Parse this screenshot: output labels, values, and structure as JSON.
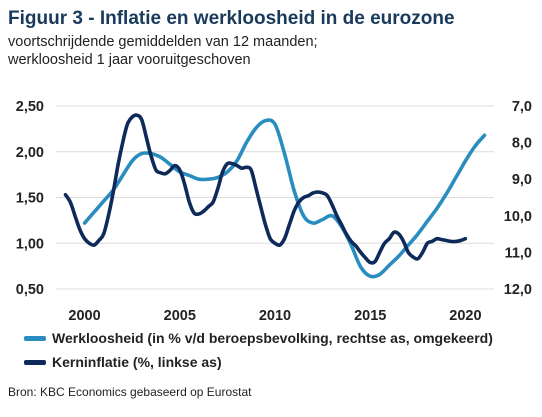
{
  "title": "Figuur 3 - Inflatie en werkloosheid in de eurozone",
  "subtitle_line1": "voortschrijdende gemiddelden van 12 maanden;",
  "subtitle_line2": "werkloosheid 1 jaar vooruitgeschoven",
  "source": "Bron: KBC Economics gebaseerd op Eurostat",
  "colors": {
    "unemployment": "#2a8dbf",
    "core_inflation": "#0d2a5a",
    "grid": "#dcdcdc"
  },
  "chart_data": {
    "type": "line",
    "x_range": [
      1998.5,
      2021.5
    ],
    "x_ticks": [
      "2000",
      "2005",
      "2010",
      "2015",
      "2020"
    ],
    "left_axis": {
      "range": [
        0.5,
        2.5
      ],
      "ticks": [
        "2,50",
        "2,00",
        "1,50",
        "1,00",
        "0,50"
      ]
    },
    "right_axis": {
      "range": [
        7.0,
        12.0
      ],
      "inverted": true,
      "ticks": [
        "7,0",
        "8,0",
        "9,0",
        "10,0",
        "11,0",
        "12,0"
      ]
    },
    "grid": true,
    "legend_position": "bottom",
    "series": [
      {
        "name": "Werkloosheid (in % v/d beroepsbevolking, rechtse as, omgekeerd)",
        "axis": "right",
        "x": [
          2000.0,
          2000.5,
          2001.0,
          2001.5,
          2002.0,
          2002.5,
          2003.0,
          2003.5,
          2004.0,
          2004.5,
          2005.0,
          2005.5,
          2006.0,
          2006.5,
          2007.0,
          2007.5,
          2008.0,
          2008.5,
          2009.0,
          2009.5,
          2010.0,
          2010.5,
          2011.0,
          2011.5,
          2012.0,
          2012.5,
          2013.0,
          2013.5,
          2014.0,
          2014.5,
          2015.0,
          2015.5,
          2016.0,
          2016.5,
          2017.0,
          2017.5,
          2018.0,
          2018.5,
          2019.0,
          2019.5,
          2020.0,
          2020.5,
          2021.0
        ],
        "values": [
          10.2,
          9.9,
          9.6,
          9.3,
          8.9,
          8.5,
          8.3,
          8.3,
          8.4,
          8.6,
          8.8,
          8.9,
          9.0,
          9.0,
          8.95,
          8.8,
          8.5,
          8.0,
          7.6,
          7.4,
          7.5,
          8.3,
          9.3,
          10.0,
          10.2,
          10.1,
          10.0,
          10.3,
          10.8,
          11.4,
          11.65,
          11.6,
          11.35,
          11.1,
          10.8,
          10.5,
          10.15,
          9.8,
          9.4,
          8.95,
          8.5,
          8.1,
          7.8
        ]
      },
      {
        "name": "Kerninflatie (%, linkse as)",
        "axis": "left",
        "x": [
          1999.0,
          1999.25,
          1999.5,
          1999.75,
          2000.0,
          2000.25,
          2000.5,
          2000.75,
          2001.0,
          2001.25,
          2001.5,
          2001.75,
          2002.0,
          2002.25,
          2002.5,
          2002.75,
          2003.0,
          2003.25,
          2003.5,
          2003.75,
          2004.0,
          2004.25,
          2004.5,
          2004.75,
          2005.0,
          2005.25,
          2005.5,
          2005.75,
          2006.0,
          2006.25,
          2006.5,
          2006.75,
          2007.0,
          2007.25,
          2007.5,
          2007.75,
          2008.0,
          2008.25,
          2008.5,
          2008.75,
          2009.0,
          2009.25,
          2009.5,
          2009.75,
          2010.0,
          2010.25,
          2010.5,
          2010.75,
          2011.0,
          2011.25,
          2011.5,
          2011.75,
          2012.0,
          2012.25,
          2012.5,
          2012.75,
          2013.0,
          2013.25,
          2013.5,
          2013.75,
          2014.0,
          2014.25,
          2014.5,
          2014.75,
          2015.0,
          2015.25,
          2015.5,
          2015.75,
          2016.0,
          2016.25,
          2016.5,
          2016.75,
          2017.0,
          2017.25,
          2017.5,
          2017.75,
          2018.0,
          2018.25,
          2018.5,
          2018.75,
          2019.0,
          2019.25,
          2019.5,
          2019.75,
          2020.0
        ],
        "values": [
          1.53,
          1.45,
          1.3,
          1.15,
          1.05,
          1.0,
          0.98,
          1.03,
          1.1,
          1.3,
          1.55,
          1.85,
          2.1,
          2.3,
          2.38,
          2.4,
          2.35,
          2.15,
          1.95,
          1.8,
          1.77,
          1.76,
          1.8,
          1.85,
          1.8,
          1.65,
          1.45,
          1.33,
          1.32,
          1.35,
          1.4,
          1.45,
          1.6,
          1.78,
          1.87,
          1.87,
          1.85,
          1.82,
          1.83,
          1.8,
          1.6,
          1.4,
          1.2,
          1.05,
          1.0,
          0.98,
          1.05,
          1.2,
          1.35,
          1.45,
          1.5,
          1.52,
          1.55,
          1.56,
          1.55,
          1.52,
          1.42,
          1.3,
          1.2,
          1.1,
          1.02,
          0.97,
          0.9,
          0.84,
          0.79,
          0.8,
          0.9,
          1.0,
          1.05,
          1.12,
          1.1,
          1.02,
          0.9,
          0.85,
          0.83,
          0.9,
          1.0,
          1.02,
          1.05,
          1.04,
          1.03,
          1.02,
          1.02,
          1.03,
          1.05
        ]
      }
    ]
  }
}
